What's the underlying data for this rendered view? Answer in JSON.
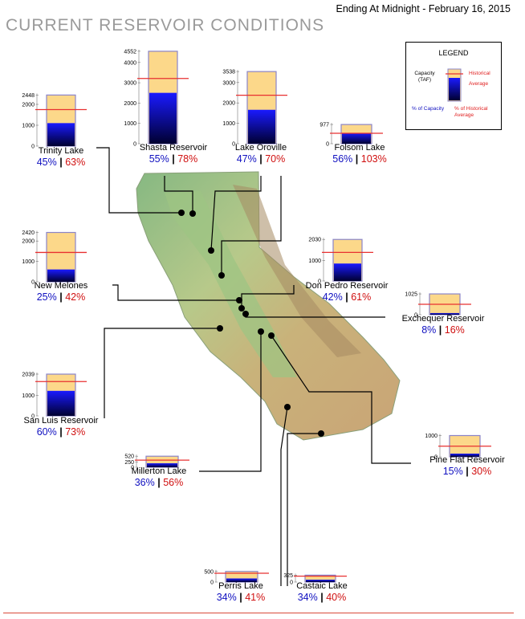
{
  "header": {
    "date_text": "Ending At Midnight - February 16, 2015",
    "title": "CURRENT RESERVOIR CONDITIONS"
  },
  "legend": {
    "title": "LEGEND",
    "capacity_label": "Capacity (TAF)",
    "historical_label": "Historical",
    "average_label": "Average",
    "pct_capacity_label": "% of Capacity",
    "pct_historical_label": "% of Historical Average"
  },
  "colors": {
    "capacity_fill": "#fcd88a",
    "capacity_border": "#8a84c9",
    "storage_top": "#1a1aff",
    "storage_bottom": "#000030",
    "historical_line": "#e83030",
    "pct_capacity_text": "#1010c0",
    "pct_historical_text": "#d01010",
    "connector": "#000000"
  },
  "chart_data": {
    "type": "bar",
    "units": "TAF",
    "reservoirs": [
      {
        "name": "Trinity Lake",
        "capacity": 2448,
        "storage": 1102,
        "historical_avg": 1749,
        "pct_capacity": "45%",
        "pct_historical": "63%",
        "ticks": [
          0,
          1000,
          2000,
          2448
        ]
      },
      {
        "name": "Shasta Reservoir",
        "capacity": 4552,
        "storage": 2504,
        "historical_avg": 3210,
        "pct_capacity": "55%",
        "pct_historical": "78%",
        "ticks": [
          0,
          1000,
          2000,
          3000,
          4000,
          4552
        ]
      },
      {
        "name": "Lake Oroville",
        "capacity": 3538,
        "storage": 1663,
        "historical_avg": 2376,
        "pct_capacity": "47%",
        "pct_historical": "70%",
        "ticks": [
          0,
          1000,
          2000,
          3000,
          3538
        ]
      },
      {
        "name": "Folsom Lake",
        "capacity": 977,
        "storage": 547,
        "historical_avg": 531,
        "pct_capacity": "56%",
        "pct_historical": "103%",
        "ticks": [
          0,
          977
        ]
      },
      {
        "name": "New Melones",
        "capacity": 2420,
        "storage": 605,
        "historical_avg": 1440,
        "pct_capacity": "25%",
        "pct_historical": "42%",
        "ticks": [
          0,
          1000,
          2000,
          2420
        ]
      },
      {
        "name": "Don Pedro Reservoir",
        "capacity": 2030,
        "storage": 853,
        "historical_avg": 1398,
        "pct_capacity": "42%",
        "pct_historical": "61%",
        "ticks": [
          0,
          1000,
          2030
        ]
      },
      {
        "name": "Exchequer Reservoir",
        "capacity": 1025,
        "storage": 82,
        "historical_avg": 513,
        "pct_capacity": "8%",
        "pct_historical": "16%",
        "ticks": [
          0,
          1025
        ]
      },
      {
        "name": "San Luis Reservoir",
        "capacity": 2039,
        "storage": 1223,
        "historical_avg": 1676,
        "pct_capacity": "60%",
        "pct_historical": "73%",
        "ticks": [
          0,
          1000,
          2039
        ]
      },
      {
        "name": "Millerton Lake",
        "capacity": 520,
        "storage": 187,
        "historical_avg": 334,
        "pct_capacity": "36%",
        "pct_historical": "56%",
        "ticks": [
          0,
          250,
          520
        ]
      },
      {
        "name": "Pine Flat Reservoir",
        "capacity": 1000,
        "storage": 150,
        "historical_avg": 500,
        "pct_capacity": "15%",
        "pct_historical": "30%",
        "ticks": [
          0,
          1000
        ]
      },
      {
        "name": "Perris Lake",
        "capacity": 500,
        "storage": 170,
        "historical_avg": 415,
        "pct_capacity": "34%",
        "pct_historical": "41%",
        "ticks": [
          0,
          500
        ]
      },
      {
        "name": "Castaic Lake",
        "capacity": 325,
        "storage": 111,
        "historical_avg": 277,
        "pct_capacity": "34%",
        "pct_historical": "40%",
        "ticks": [
          0,
          325
        ]
      }
    ]
  }
}
